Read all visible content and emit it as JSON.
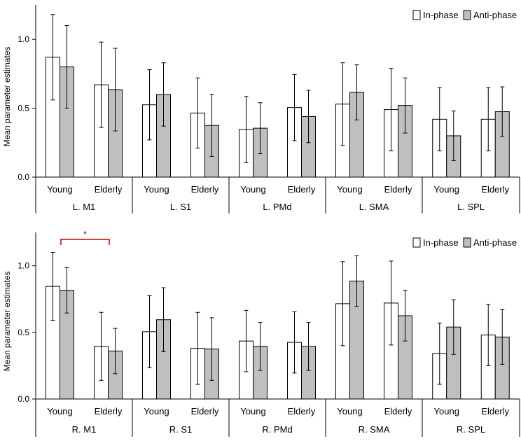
{
  "figure": {
    "colors": {
      "in_phase": "#ffffff",
      "anti_phase": "#bfbfbf",
      "significance": "#c00000",
      "axis": "#000000"
    }
  },
  "chart_data": [
    {
      "type": "bar",
      "panel": "left hemisphere",
      "ylabel": "Mean parameter estimates",
      "ylim": [
        0,
        1.25
      ],
      "yticks": [
        0.0,
        0.5,
        1.0
      ],
      "ytick_labels": [
        "0.0",
        "0.5",
        "1.0"
      ],
      "legend": {
        "position": "top-right",
        "entries": [
          "In-phase",
          "Anti-phase"
        ]
      },
      "groups": [
        {
          "region": "L. M1",
          "categories": [
            {
              "label": "Young",
              "in_phase": 0.87,
              "in_phase_err": 0.31,
              "anti_phase": 0.8,
              "anti_phase_err": 0.3
            },
            {
              "label": "Elderly",
              "in_phase": 0.67,
              "in_phase_err": 0.31,
              "anti_phase": 0.635,
              "anti_phase_err": 0.3
            }
          ]
        },
        {
          "region": "L. S1",
          "categories": [
            {
              "label": "Young",
              "in_phase": 0.525,
              "in_phase_err": 0.255,
              "anti_phase": 0.6,
              "anti_phase_err": 0.23
            },
            {
              "label": "Elderly",
              "in_phase": 0.465,
              "in_phase_err": 0.255,
              "anti_phase": 0.375,
              "anti_phase_err": 0.225
            }
          ]
        },
        {
          "region": "L. PMd",
          "categories": [
            {
              "label": "Young",
              "in_phase": 0.345,
              "in_phase_err": 0.24,
              "anti_phase": 0.355,
              "anti_phase_err": 0.185
            },
            {
              "label": "Elderly",
              "in_phase": 0.505,
              "in_phase_err": 0.24,
              "anti_phase": 0.44,
              "anti_phase_err": 0.19
            }
          ]
        },
        {
          "region": "L. SMA",
          "categories": [
            {
              "label": "Young",
              "in_phase": 0.53,
              "in_phase_err": 0.3,
              "anti_phase": 0.615,
              "anti_phase_err": 0.2
            },
            {
              "label": "Elderly",
              "in_phase": 0.49,
              "in_phase_err": 0.3,
              "anti_phase": 0.52,
              "anti_phase_err": 0.2
            }
          ]
        },
        {
          "region": "L. SPL",
          "categories": [
            {
              "label": "Young",
              "in_phase": 0.42,
              "in_phase_err": 0.23,
              "anti_phase": 0.3,
              "anti_phase_err": 0.18
            },
            {
              "label": "Elderly",
              "in_phase": 0.42,
              "in_phase_err": 0.23,
              "anti_phase": 0.475,
              "anti_phase_err": 0.18
            }
          ]
        }
      ]
    },
    {
      "type": "bar",
      "panel": "right hemisphere",
      "ylabel": "Mean parameter estimates",
      "ylim": [
        0,
        1.25
      ],
      "yticks": [
        0.0,
        0.5,
        1.0
      ],
      "ytick_labels": [
        "0.0",
        "0.5",
        "1.0"
      ],
      "legend": {
        "position": "top-right",
        "entries": [
          "In-phase",
          "Anti-phase"
        ]
      },
      "annotation": {
        "text": "*",
        "between": [
          "R. M1 Young",
          "R. M1 Elderly"
        ]
      },
      "groups": [
        {
          "region": "R. M1",
          "categories": [
            {
              "label": "Young",
              "in_phase": 0.845,
              "in_phase_err": 0.255,
              "anti_phase": 0.815,
              "anti_phase_err": 0.17
            },
            {
              "label": "Elderly",
              "in_phase": 0.395,
              "in_phase_err": 0.255,
              "anti_phase": 0.36,
              "anti_phase_err": 0.17
            }
          ]
        },
        {
          "region": "R. S1",
          "categories": [
            {
              "label": "Young",
              "in_phase": 0.505,
              "in_phase_err": 0.27,
              "anti_phase": 0.595,
              "anti_phase_err": 0.24
            },
            {
              "label": "Elderly",
              "in_phase": 0.38,
              "in_phase_err": 0.27,
              "anti_phase": 0.375,
              "anti_phase_err": 0.235
            }
          ]
        },
        {
          "region": "R. PMd",
          "categories": [
            {
              "label": "Young",
              "in_phase": 0.435,
              "in_phase_err": 0.23,
              "anti_phase": 0.395,
              "anti_phase_err": 0.18
            },
            {
              "label": "Elderly",
              "in_phase": 0.425,
              "in_phase_err": 0.23,
              "anti_phase": 0.395,
              "anti_phase_err": 0.18
            }
          ]
        },
        {
          "region": "R. SMA",
          "categories": [
            {
              "label": "Young",
              "in_phase": 0.715,
              "in_phase_err": 0.315,
              "anti_phase": 0.885,
              "anti_phase_err": 0.19
            },
            {
              "label": "Elderly",
              "in_phase": 0.72,
              "in_phase_err": 0.315,
              "anti_phase": 0.625,
              "anti_phase_err": 0.19
            }
          ]
        },
        {
          "region": "R. SPL",
          "categories": [
            {
              "label": "Young",
              "in_phase": 0.34,
              "in_phase_err": 0.23,
              "anti_phase": 0.54,
              "anti_phase_err": 0.205
            },
            {
              "label": "Elderly",
              "in_phase": 0.48,
              "in_phase_err": 0.23,
              "anti_phase": 0.465,
              "anti_phase_err": 0.205
            }
          ]
        }
      ]
    }
  ]
}
